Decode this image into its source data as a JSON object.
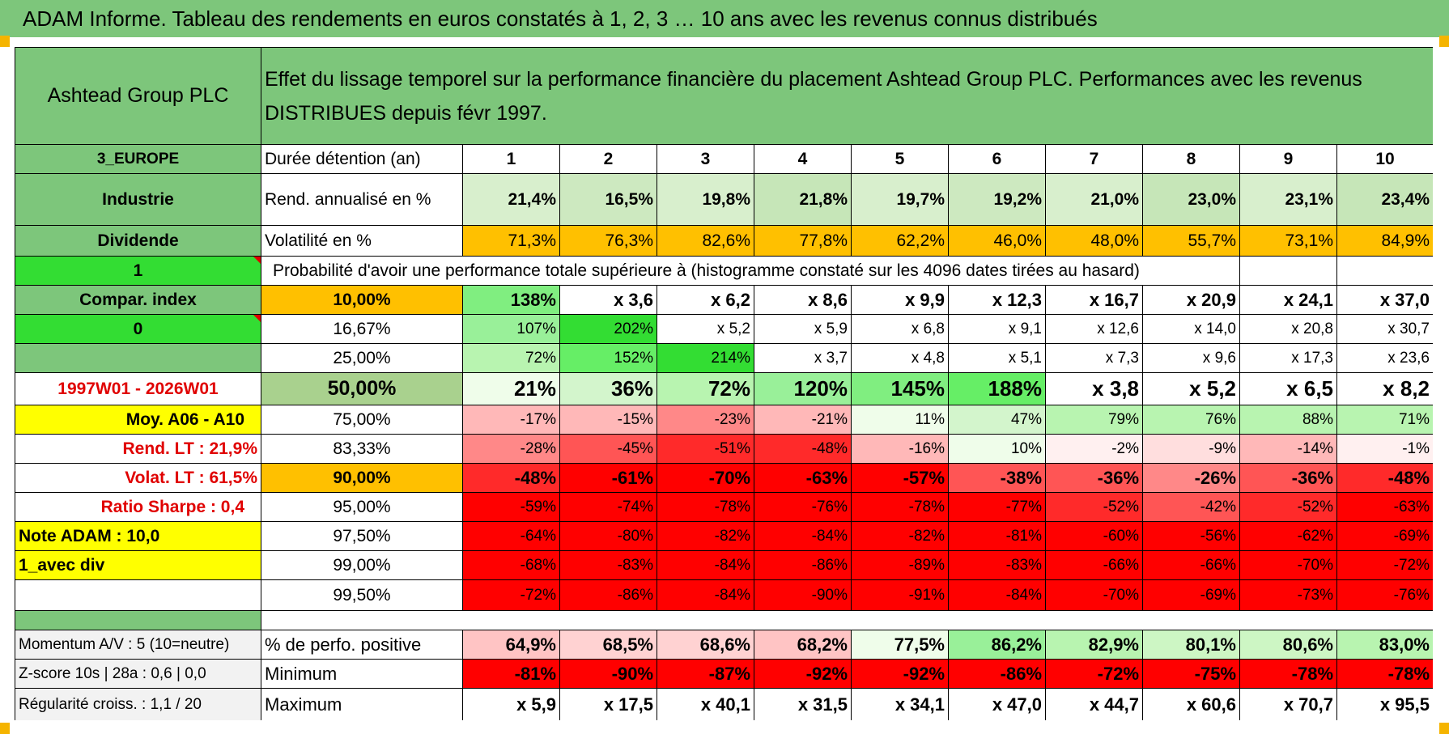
{
  "title": "ADAM Informe. Tableau des rendements en euros constatés à 1, 2, 3 … 10 ans avec les revenus connus distribués",
  "header": {
    "company": "Ashtead Group PLC",
    "description": "Effet du lissage temporel sur la performance financière du placement Ashtead Group PLC. Performances avec les revenus DISTRIBUES depuis févr 1997."
  },
  "left_labels": [
    "3_EUROPE",
    "Industrie",
    "Dividende",
    "1",
    "Compar. index",
    "0",
    "",
    "1997W01 - 2026W01",
    "Moy. A06 - A10",
    "Rend. LT :    21,9%",
    "Volat. LT :    61,5%",
    "Ratio Sharpe :    0,4",
    "Note ADAM : 10,0",
    "1_avec div",
    ""
  ],
  "row_labels": {
    "duration": "Durée détention (an)",
    "rend": "Rend. annualisé en %",
    "vol": "Volatilité en %",
    "prob": "Probabilité d'avoir une performance totale supérieure à (histogramme constaté sur les 4096 dates tirées au hasard)"
  },
  "years": [
    "1",
    "2",
    "3",
    "4",
    "5",
    "6",
    "7",
    "8",
    "9",
    "10"
  ],
  "rend": [
    "21,4%",
    "16,5%",
    "19,8%",
    "21,8%",
    "19,7%",
    "19,2%",
    "21,0%",
    "23,0%",
    "23,1%",
    "23,4%"
  ],
  "vol": [
    "71,3%",
    "76,3%",
    "82,6%",
    "77,8%",
    "62,2%",
    "46,0%",
    "48,0%",
    "55,7%",
    "73,1%",
    "84,9%"
  ],
  "percentiles": [
    "10,00%",
    "16,67%",
    "25,00%",
    "50,00%",
    "75,00%",
    "83,33%",
    "90,00%",
    "95,00%",
    "97,50%",
    "99,00%",
    "99,50%"
  ],
  "matrix": [
    [
      "138%",
      "x 3,6",
      "x 6,2",
      "x 8,6",
      "x 9,9",
      "x 12,3",
      "x 16,7",
      "x 20,9",
      "x 24,1",
      "x 37,0"
    ],
    [
      "107%",
      "202%",
      "x 5,2",
      "x 5,9",
      "x 6,8",
      "x 9,1",
      "x 12,6",
      "x 14,0",
      "x 20,8",
      "x 30,7"
    ],
    [
      "72%",
      "152%",
      "214%",
      "x 3,7",
      "x 4,8",
      "x 5,1",
      "x 7,3",
      "x 9,6",
      "x 17,3",
      "x 23,6"
    ],
    [
      "21%",
      "36%",
      "72%",
      "120%",
      "145%",
      "188%",
      "x 3,8",
      "x 5,2",
      "x 6,5",
      "x 8,2"
    ],
    [
      "-17%",
      "-15%",
      "-23%",
      "-21%",
      "11%",
      "47%",
      "79%",
      "76%",
      "88%",
      "71%"
    ],
    [
      "-28%",
      "-45%",
      "-51%",
      "-48%",
      "-16%",
      "10%",
      "-2%",
      "-9%",
      "-14%",
      "-1%"
    ],
    [
      "-48%",
      "-61%",
      "-70%",
      "-63%",
      "-57%",
      "-38%",
      "-36%",
      "-26%",
      "-36%",
      "-48%"
    ],
    [
      "-59%",
      "-74%",
      "-78%",
      "-76%",
      "-78%",
      "-77%",
      "-52%",
      "-42%",
      "-52%",
      "-63%"
    ],
    [
      "-64%",
      "-80%",
      "-82%",
      "-84%",
      "-82%",
      "-81%",
      "-60%",
      "-56%",
      "-62%",
      "-69%"
    ],
    [
      "-68%",
      "-83%",
      "-84%",
      "-86%",
      "-89%",
      "-83%",
      "-66%",
      "-66%",
      "-70%",
      "-72%"
    ],
    [
      "-72%",
      "-86%",
      "-84%",
      "-90%",
      "-91%",
      "-84%",
      "-70%",
      "-69%",
      "-73%",
      "-76%"
    ]
  ],
  "bottom": {
    "left": [
      "Momentum A/V : 5 (10=neutre)",
      "Z-score 10s | 28a : 0,6 | 0,0",
      "Régularité croiss. : 1,1 / 20"
    ],
    "labels": [
      "% de perfo. positive",
      "Minimum",
      "Maximum"
    ],
    "positive": [
      "64,9%",
      "68,5%",
      "68,6%",
      "68,2%",
      "77,5%",
      "86,2%",
      "82,9%",
      "80,1%",
      "80,6%",
      "83,0%"
    ],
    "minimum": [
      "-81%",
      "-90%",
      "-87%",
      "-92%",
      "-92%",
      "-86%",
      "-72%",
      "-75%",
      "-78%",
      "-78%"
    ],
    "maximum": [
      "x 5,9",
      "x 17,5",
      "x 40,1",
      "x 31,5",
      "x 34,1",
      "x 47,0",
      "x 44,7",
      "x 60,6",
      "x 70,7",
      "x 95,5"
    ]
  },
  "colors": {
    "header_green": "#7dc67b",
    "bright_green": "#33dd33",
    "orange": "#ffc000",
    "yellow": "#ffff00",
    "red": "#ff0000",
    "red_text": "#e00000"
  }
}
